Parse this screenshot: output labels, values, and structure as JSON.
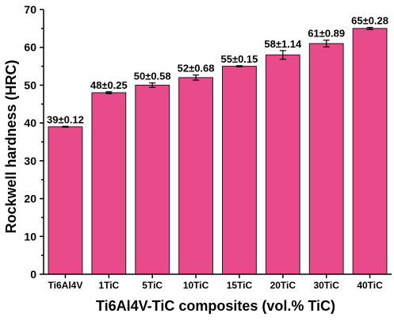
{
  "chart_data": {
    "type": "bar",
    "categories": [
      "Ti6Al4V",
      "1TiC",
      "5TiC",
      "10TiC",
      "15TiC",
      "20TiC",
      "30TiC",
      "40TiC"
    ],
    "values": [
      39,
      48,
      50,
      52,
      55,
      58,
      61,
      65
    ],
    "errors": [
      0.12,
      0.25,
      0.58,
      0.68,
      0.15,
      1.14,
      0.89,
      0.28
    ],
    "data_labels": [
      "39±0.12",
      "48±0.25",
      "50±0.58",
      "52±0.68",
      "55±0.15",
      "58±1.14",
      "61±0.89",
      "65±0.28"
    ],
    "y_ticks": [
      0,
      10,
      20,
      30,
      40,
      50,
      60,
      70
    ],
    "y_tick_labels": [
      "0",
      "10",
      "20",
      "30",
      "40",
      "50",
      "60",
      "70"
    ],
    "title": "",
    "xlabel": "Ti6Al4V-TiC composites (vol.% TiC)",
    "ylabel": "Rockwell hardness (HRC)",
    "ylim": [
      0,
      70
    ],
    "grid": false,
    "colors": {
      "bar_fill": "#e84a8a",
      "bar_stroke": "#1a1a1a",
      "axis": "#000000",
      "background": "#ffffff"
    }
  }
}
